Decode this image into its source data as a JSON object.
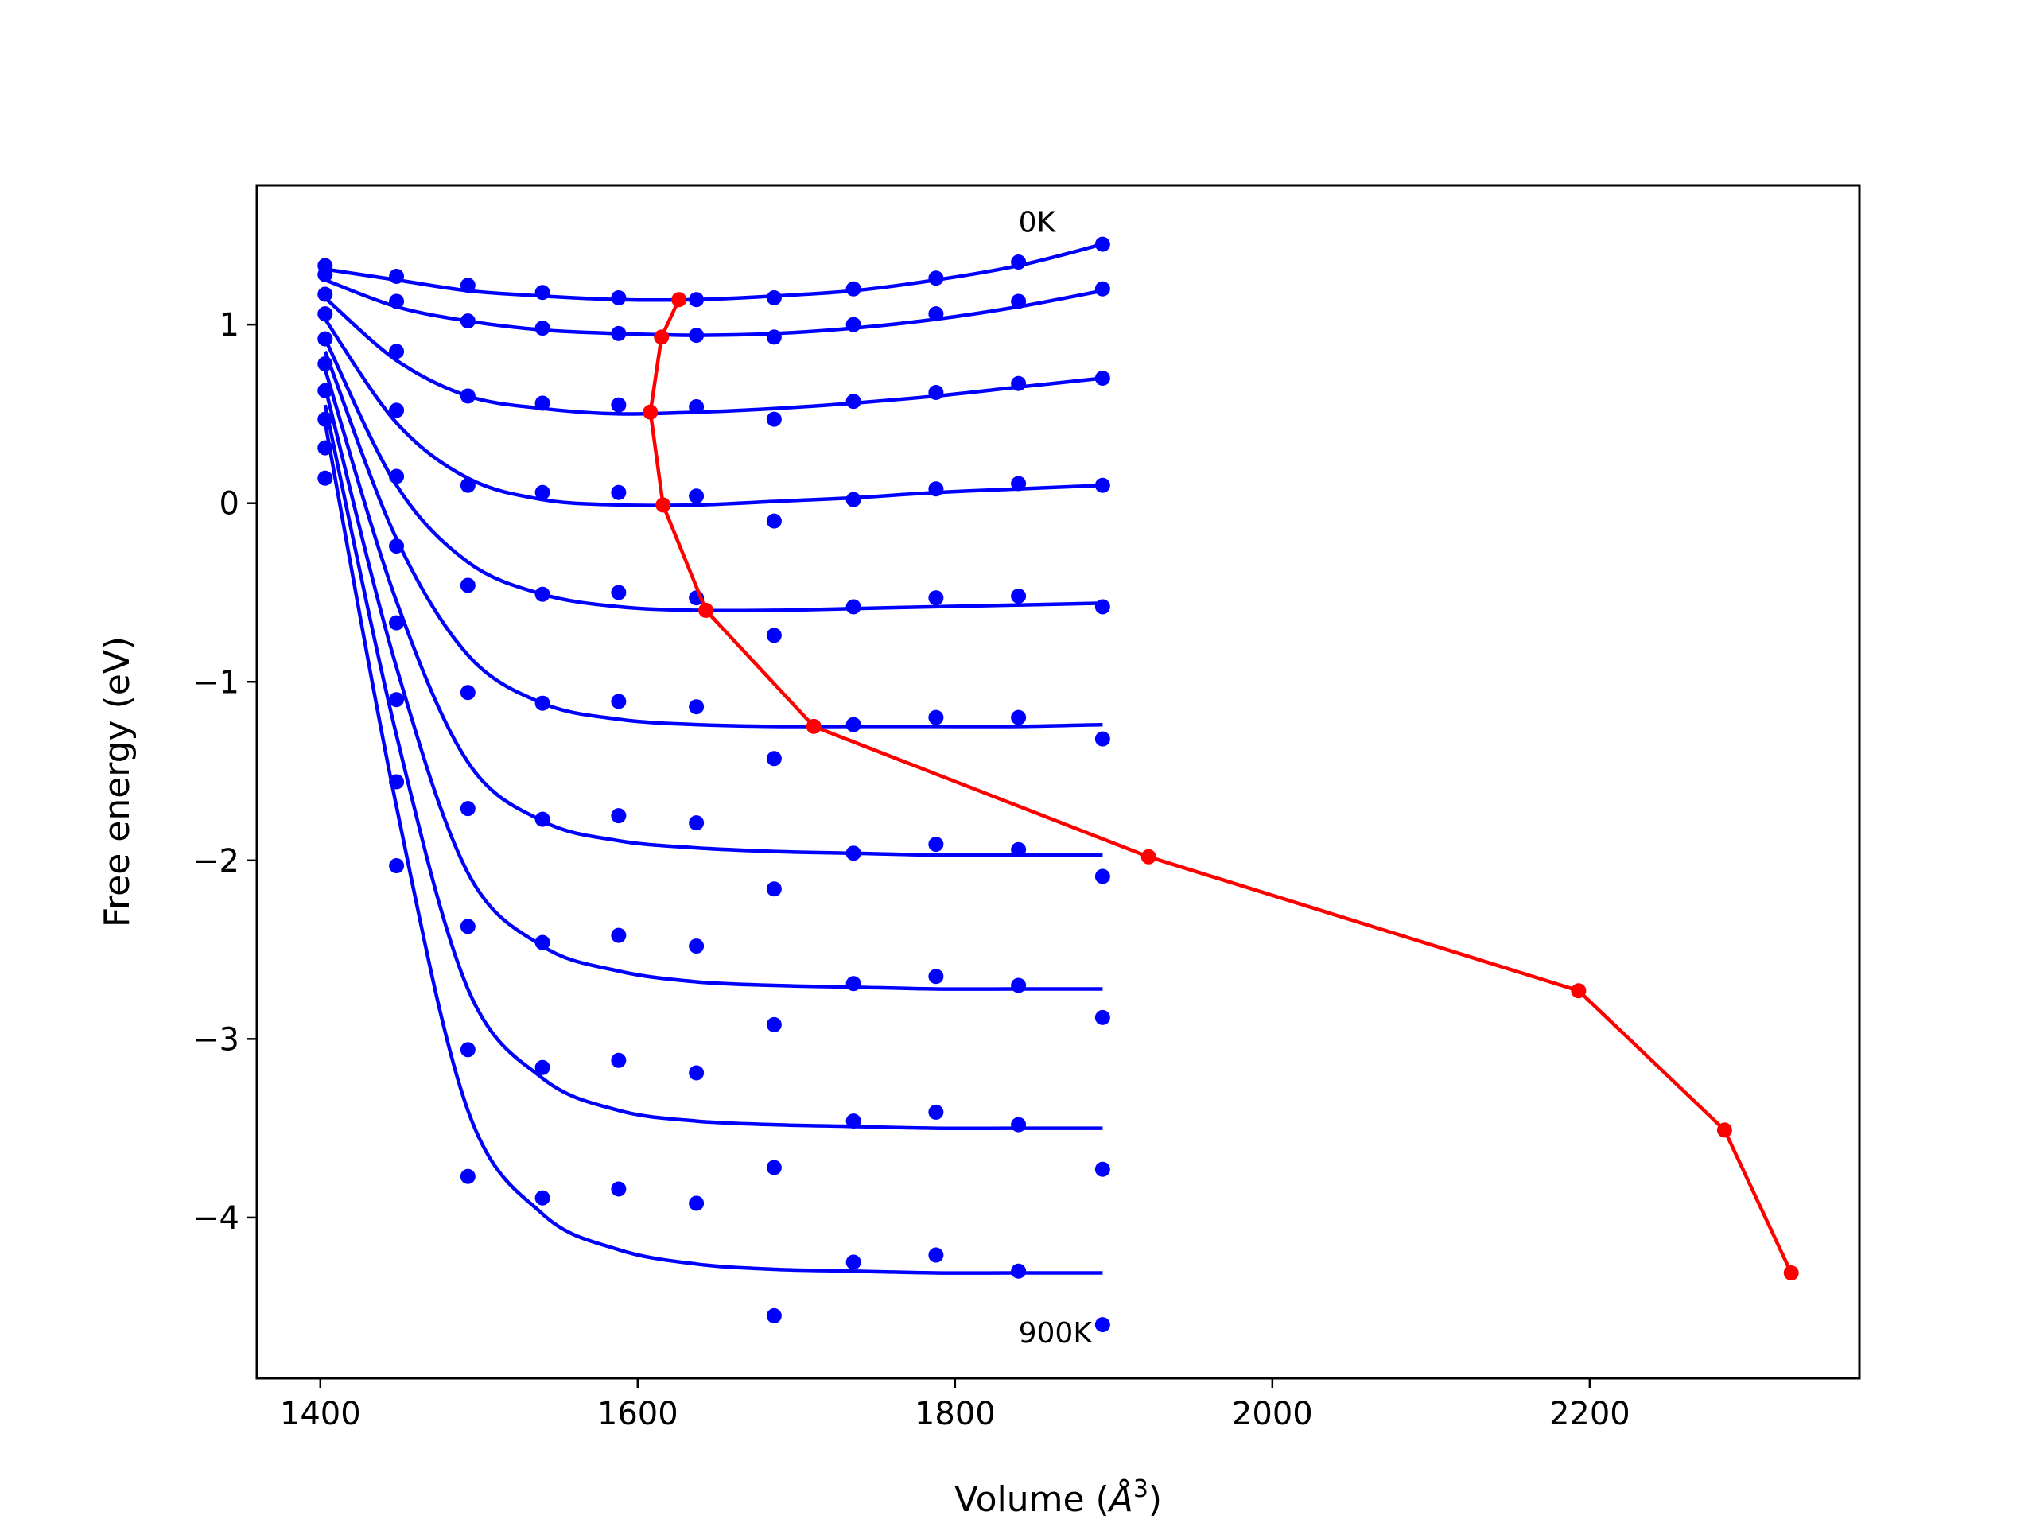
{
  "chart_data": {
    "type": "scatter",
    "xlabel_text": "Volume (",
    "xlabel_unit": "Å",
    "xlabel_sup": "3",
    "xlabel_close": ")",
    "ylabel": "Free energy (eV)",
    "xlim": [
      1360,
      2370
    ],
    "ylim": [
      -4.9,
      1.78
    ],
    "x_ticks": [
      1400,
      1600,
      1800,
      2000,
      2200
    ],
    "y_ticks": [
      1,
      0,
      -1,
      -2,
      -3,
      -4
    ],
    "y_tick_labels": [
      "1",
      "0",
      "−1",
      "−2",
      "−3",
      "−4"
    ],
    "grid": false,
    "annotations": [
      {
        "text": "0K",
        "x": 1840,
        "y": 1.52
      },
      {
        "text": "900K",
        "x": 1840,
        "y": -4.7
      }
    ],
    "colors": {
      "points": "#0000ff",
      "fit": "#0000ff",
      "minimum_path": "#ff0000",
      "axes": "#000000"
    },
    "volumes": [
      1403,
      1448,
      1493,
      1540,
      1588,
      1637,
      1686,
      1736,
      1788,
      1840,
      1893
    ],
    "temperature_series": [
      {
        "points": [
          1.33,
          1.27,
          1.22,
          1.18,
          1.15,
          1.14,
          1.15,
          1.2,
          1.26,
          1.35,
          1.45
        ],
        "fit": [
          1.31,
          1.25,
          1.19,
          1.16,
          1.14,
          1.14,
          1.16,
          1.19,
          1.25,
          1.33,
          1.45
        ]
      },
      {
        "points": [
          1.28,
          1.13,
          1.02,
          0.98,
          0.95,
          0.94,
          0.93,
          1.0,
          1.06,
          1.13,
          1.2
        ],
        "fit": [
          1.25,
          1.1,
          1.02,
          0.97,
          0.95,
          0.94,
          0.95,
          0.98,
          1.03,
          1.1,
          1.19
        ]
      },
      {
        "points": [
          1.17,
          0.85,
          0.6,
          0.56,
          0.55,
          0.54,
          0.47,
          0.57,
          0.62,
          0.67,
          0.7
        ],
        "fit": [
          1.15,
          0.8,
          0.6,
          0.53,
          0.5,
          0.51,
          0.53,
          0.56,
          0.6,
          0.65,
          0.7
        ]
      },
      {
        "points": [
          1.06,
          0.52,
          0.1,
          0.06,
          0.06,
          0.04,
          -0.1,
          0.02,
          0.08,
          0.11,
          0.1
        ],
        "fit": [
          1.03,
          0.45,
          0.14,
          0.02,
          -0.01,
          -0.01,
          0.01,
          0.03,
          0.06,
          0.08,
          0.1
        ]
      },
      {
        "points": [
          0.92,
          0.15,
          -0.46,
          -0.51,
          -0.5,
          -0.53,
          -0.74,
          -0.58,
          -0.53,
          -0.52,
          -0.58
        ],
        "fit": [
          0.92,
          0.1,
          -0.33,
          -0.51,
          -0.58,
          -0.6,
          -0.6,
          -0.59,
          -0.58,
          -0.57,
          -0.56
        ]
      },
      {
        "points": [
          0.78,
          -0.24,
          -1.06,
          -1.12,
          -1.11,
          -1.14,
          -1.43,
          -1.24,
          -1.2,
          -1.2,
          -1.32
        ],
        "fit": [
          0.85,
          -0.2,
          -0.85,
          -1.12,
          -1.21,
          -1.24,
          -1.25,
          -1.25,
          -1.25,
          -1.25,
          -1.24
        ]
      },
      {
        "points": [
          0.63,
          -0.67,
          -1.71,
          -1.77,
          -1.75,
          -1.79,
          -2.16,
          -1.96,
          -1.91,
          -1.94,
          -2.09
        ],
        "fit": [
          0.75,
          -0.55,
          -1.45,
          -1.78,
          -1.89,
          -1.93,
          -1.95,
          -1.96,
          -1.97,
          -1.97,
          -1.97
        ]
      },
      {
        "points": [
          0.47,
          -1.1,
          -2.37,
          -2.46,
          -2.42,
          -2.48,
          -2.92,
          -2.69,
          -2.65,
          -2.7,
          -2.88
        ],
        "fit": [
          0.65,
          -0.92,
          -2.07,
          -2.48,
          -2.62,
          -2.68,
          -2.7,
          -2.71,
          -2.72,
          -2.72,
          -2.72
        ]
      },
      {
        "points": [
          0.31,
          -1.56,
          -3.06,
          -3.16,
          -3.12,
          -3.19,
          -3.72,
          -3.46,
          -3.41,
          -3.48,
          -3.73
        ],
        "fit": [
          0.55,
          -1.3,
          -2.72,
          -3.22,
          -3.4,
          -3.46,
          -3.48,
          -3.49,
          -3.5,
          -3.5,
          -3.5
        ]
      },
      {
        "points": [
          0.14,
          -2.03,
          -3.77,
          -3.89,
          -3.84,
          -3.92,
          -4.55,
          -4.25,
          -4.21,
          -4.3,
          -4.6
        ],
        "fit": [
          0.45,
          -1.7,
          -3.4,
          -3.98,
          -4.18,
          -4.26,
          -4.29,
          -4.3,
          -4.31,
          -4.31,
          -4.31
        ]
      }
    ],
    "minimum_path": {
      "x": [
        1626,
        1615,
        1608,
        1616,
        1643,
        1711,
        1922,
        2193,
        2285,
        2327
      ],
      "y": [
        1.14,
        0.93,
        0.51,
        -0.01,
        -0.6,
        -1.25,
        -1.98,
        -2.73,
        -3.51,
        -4.31
      ]
    }
  }
}
